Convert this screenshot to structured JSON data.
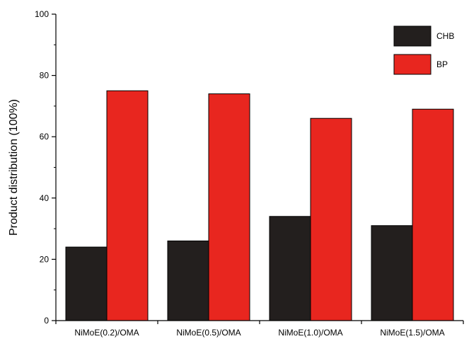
{
  "chart_data": {
    "type": "bar",
    "title": "",
    "xlabel": "",
    "ylabel": "Product distribution (100%)",
    "categories": [
      "NiMoE(0.2)/OMA",
      "NiMoE(0.5)/OMA",
      "NiMoE(1.0)/OMA",
      "NiMoE(1.5)/OMA"
    ],
    "series": [
      {
        "name": "CHB",
        "color": "#231f1e",
        "values": [
          24,
          26,
          34,
          31
        ]
      },
      {
        "name": "BP",
        "color": "#e8261f",
        "values": [
          75,
          74,
          66,
          69
        ]
      }
    ],
    "ylim": [
      0,
      100
    ],
    "yticks": [
      0,
      20,
      40,
      60,
      80,
      100
    ],
    "grid": false,
    "legend_position": "top-right"
  }
}
